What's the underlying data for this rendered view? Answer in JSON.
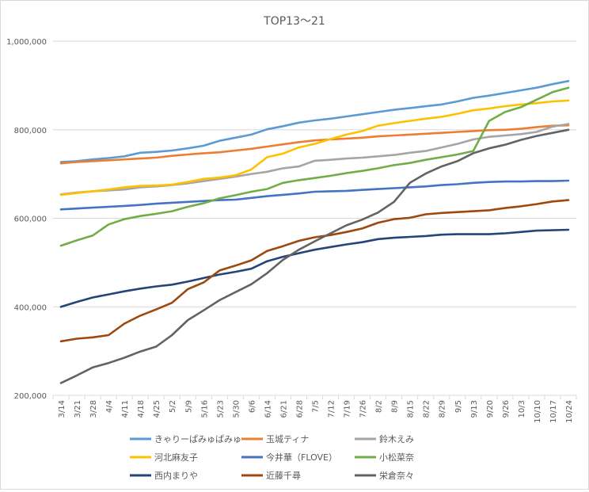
{
  "chart_data": {
    "type": "line",
    "title": "TOP13～21",
    "x": [
      "3/14",
      "3/21",
      "3/28",
      "4/4",
      "4/11",
      "4/18",
      "4/25",
      "5/2",
      "5/9",
      "5/16",
      "5/23",
      "5/30",
      "6/6",
      "6/14",
      "6/21",
      "6/28",
      "7/5",
      "7/12",
      "7/19",
      "7/26",
      "8/2",
      "8/9",
      "8/15",
      "8/22",
      "8/29",
      "9/5",
      "9/13",
      "9/20",
      "9/26",
      "10/3",
      "10/10",
      "10/17",
      "10/24"
    ],
    "ylim": [
      200000,
      1000000
    ],
    "yticks": [
      200000,
      400000,
      600000,
      800000,
      1000000
    ],
    "ytick_labels": [
      "200,000",
      "400,000",
      "600,000",
      "800,000",
      "1,000,000"
    ],
    "legend_position": "bottom",
    "grid": true,
    "series": [
      {
        "name": "きゃりーぱみゅぱみゅ",
        "color": "#5b9bd5",
        "values": [
          727000,
          729000,
          733000,
          736000,
          740000,
          748000,
          750000,
          753000,
          758000,
          764000,
          775000,
          782000,
          789000,
          801000,
          808000,
          816000,
          821000,
          825000,
          830000,
          835000,
          840000,
          845000,
          849000,
          853000,
          857000,
          864000,
          872000,
          877000,
          883000,
          889000,
          895000,
          903000,
          910000
        ]
      },
      {
        "name": "玉城ティナ",
        "color": "#ed7d31",
        "values": [
          724000,
          727000,
          729000,
          731000,
          733000,
          735000,
          737000,
          741000,
          744000,
          747000,
          749000,
          753000,
          757000,
          762000,
          767000,
          772000,
          776000,
          778000,
          780000,
          782000,
          785000,
          787000,
          789000,
          791000,
          793000,
          795000,
          797000,
          799000,
          800000,
          802000,
          806000,
          809000,
          810000
        ]
      },
      {
        "name": "鈴木えみ",
        "color": "#a5a5a5",
        "values": [
          654000,
          658000,
          661000,
          663000,
          665000,
          670000,
          672000,
          675000,
          679000,
          684000,
          689000,
          694000,
          700000,
          705000,
          713000,
          717000,
          730000,
          732000,
          735000,
          737000,
          740000,
          743000,
          748000,
          752000,
          760000,
          768000,
          778000,
          784000,
          787000,
          790000,
          795000,
          807000,
          813000
        ]
      },
      {
        "name": "河北麻友子",
        "color": "#ffc000",
        "values": [
          653000,
          657000,
          661000,
          665000,
          670000,
          673000,
          674000,
          676000,
          682000,
          689000,
          692000,
          697000,
          710000,
          738000,
          746000,
          760000,
          768000,
          779000,
          789000,
          797000,
          809000,
          815000,
          820000,
          825000,
          829000,
          836000,
          844000,
          848000,
          853000,
          857000,
          860000,
          864000,
          866000
        ]
      },
      {
        "name": "今井華（FLOVE）",
        "color": "#4472c4",
        "values": [
          620000,
          622000,
          624000,
          626000,
          628000,
          630000,
          633000,
          635000,
          637000,
          639000,
          641000,
          642000,
          646000,
          650000,
          653000,
          656000,
          660000,
          661000,
          662000,
          664000,
          666000,
          668000,
          670000,
          672000,
          675000,
          677000,
          680000,
          682000,
          683000,
          683000,
          684000,
          684000,
          685000
        ]
      },
      {
        "name": "小松菜奈",
        "color": "#70ad47",
        "values": [
          538000,
          550000,
          561000,
          586000,
          598000,
          605000,
          610000,
          616000,
          626000,
          634000,
          645000,
          652000,
          660000,
          666000,
          680000,
          686000,
          691000,
          696000,
          702000,
          707000,
          713000,
          720000,
          725000,
          732000,
          738000,
          744000,
          752000,
          820000,
          840000,
          851000,
          868000,
          885000,
          895000
        ]
      },
      {
        "name": "西内まりや",
        "color": "#264478",
        "values": [
          400000,
          411000,
          421000,
          428000,
          435000,
          441000,
          446000,
          450000,
          457000,
          465000,
          473000,
          479000,
          486000,
          503000,
          513000,
          521000,
          529000,
          535000,
          541000,
          546000,
          553000,
          556000,
          558000,
          560000,
          563000,
          564000,
          564000,
          564000,
          566000,
          569000,
          572000,
          573000,
          574000
        ]
      },
      {
        "name": "近藤千尋",
        "color": "#9e480e",
        "values": [
          322000,
          328000,
          331000,
          336000,
          362000,
          380000,
          394000,
          409000,
          440000,
          455000,
          482000,
          493000,
          505000,
          526000,
          537000,
          549000,
          557000,
          562000,
          569000,
          577000,
          590000,
          598000,
          601000,
          609000,
          612000,
          614000,
          616000,
          618000,
          623000,
          627000,
          632000,
          638000,
          641000
        ]
      },
      {
        "name": "栄倉奈々",
        "color": "#636363",
        "values": [
          228000,
          245000,
          263000,
          273000,
          285000,
          299000,
          310000,
          336000,
          370000,
          392000,
          415000,
          433000,
          451000,
          476000,
          506000,
          529000,
          548000,
          566000,
          584000,
          597000,
          613000,
          637000,
          680000,
          701000,
          717000,
          729000,
          747000,
          758000,
          766000,
          777000,
          786000,
          793000,
          800000
        ]
      }
    ]
  }
}
